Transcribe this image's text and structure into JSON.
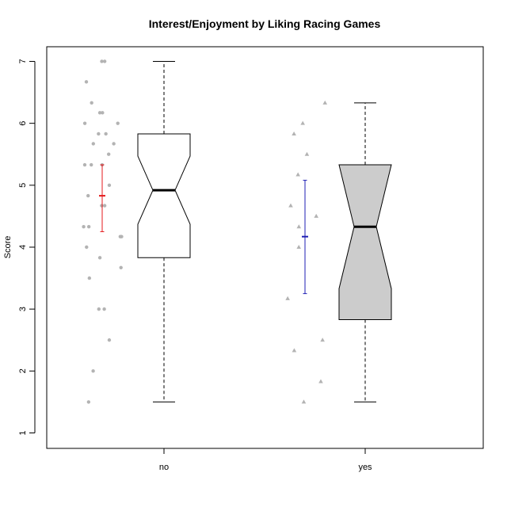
{
  "chart_data": {
    "type": "boxplot",
    "title": "Interest/Enjoyment by Liking Racing Games",
    "xlabel": "",
    "ylabel": "Score",
    "ylim": [
      0.75,
      7.25
    ],
    "yticks": [
      1,
      2,
      3,
      4,
      5,
      6,
      7
    ],
    "grid": false,
    "categories": [
      "no",
      "yes"
    ],
    "colors": {
      "box_no": "#ffffff",
      "box_yes": "#cccccc",
      "points": "#b3b3b3",
      "ci_no": "#e41a1c",
      "ci_yes": "#1f1fb4",
      "frame": "#000000"
    },
    "boxes": [
      {
        "category": "no",
        "whisker_low": 1.5,
        "q1": 3.83,
        "median": 4.92,
        "q3": 5.83,
        "whisker_high": 7.0,
        "notch_low": 4.37,
        "notch_high": 5.47,
        "mean": 4.83,
        "ci_low": 4.25,
        "ci_high": 5.33,
        "point_shape": "circle",
        "points": [
          7.0,
          7.0,
          6.67,
          6.33,
          6.17,
          6.17,
          6.0,
          6.0,
          5.83,
          5.83,
          5.67,
          5.67,
          5.5,
          5.33,
          5.33,
          5.33,
          5.0,
          4.83,
          4.67,
          4.67,
          4.33,
          4.33,
          4.17,
          4.17,
          4.0,
          3.83,
          3.67,
          3.5,
          3.0,
          3.0,
          2.5,
          2.0,
          1.5
        ]
      },
      {
        "category": "yes",
        "whisker_low": 1.5,
        "q1": 2.83,
        "median": 4.33,
        "q3": 5.33,
        "whisker_high": 6.33,
        "notch_low": 3.33,
        "notch_high": 5.33,
        "mean": 4.17,
        "ci_low": 3.25,
        "ci_high": 5.08,
        "point_shape": "triangle",
        "points": [
          6.33,
          6.0,
          5.83,
          5.5,
          5.17,
          4.67,
          4.5,
          4.33,
          4.0,
          3.17,
          2.5,
          2.33,
          1.83,
          1.5
        ]
      }
    ]
  }
}
